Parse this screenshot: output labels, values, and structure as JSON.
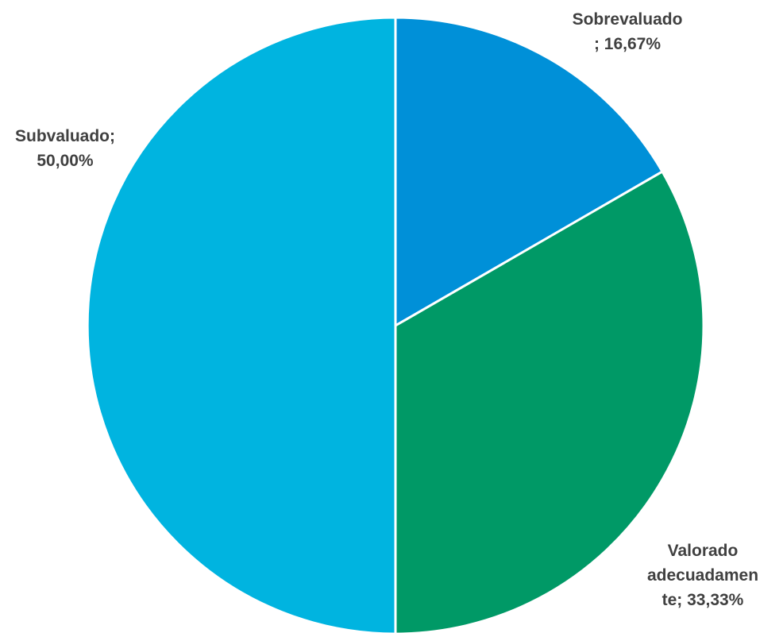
{
  "chart_data": {
    "type": "pie",
    "slices": [
      {
        "name": "Sobrevaluado",
        "value": 16.67,
        "display": "16,67%",
        "label_lines": [
          "Sobrevaluado",
          "; 16,67%"
        ],
        "color": "#0090d8"
      },
      {
        "name": "Valorado adecuadamente",
        "value": 33.33,
        "display": "33,33%",
        "label_lines": [
          "Valorado",
          "adecuadamen",
          "te; 33,33%"
        ],
        "color": "#009966"
      },
      {
        "name": "Subvaluado",
        "value": 50.0,
        "display": "50,00%",
        "label_lines": [
          "Subvaluado;",
          "50,00%"
        ],
        "color": "#00b4e0"
      }
    ],
    "start_angle": "12 o'clock",
    "direction": "clockwise",
    "border_color": "#ffffff",
    "legend": "none",
    "data_labels": "outside, category name and percent"
  }
}
